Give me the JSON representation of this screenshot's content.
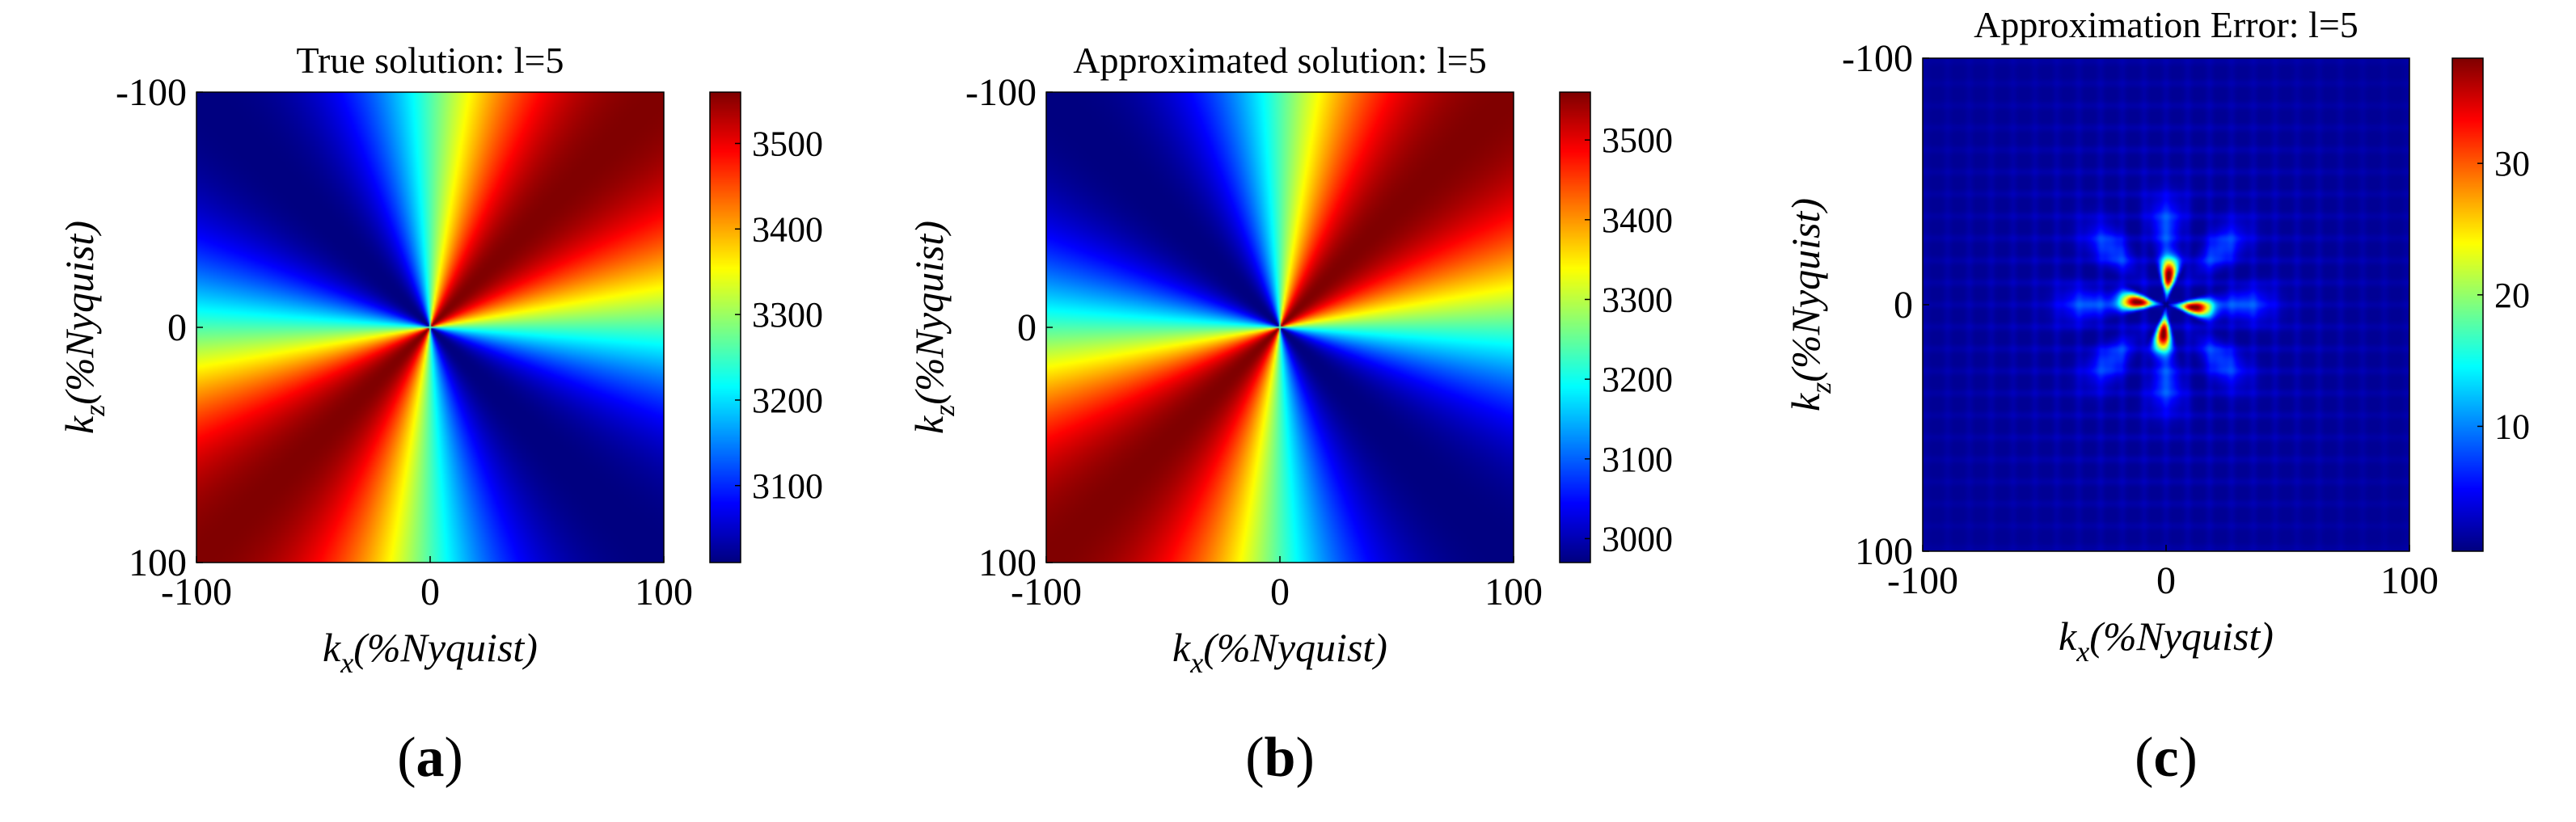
{
  "chart_data": [
    {
      "type": "heatmap",
      "panel_label": "(a)",
      "title": "True solution:  l=5",
      "xlabel": {
        "base": "k",
        "sub": "x",
        "rest": "(%Nyquist)"
      },
      "ylabel": {
        "base": "k",
        "sub": "z",
        "rest": "(%Nyquist)"
      },
      "xlim": [
        -100,
        100
      ],
      "ylim": [
        -100,
        100
      ],
      "y_reversed": true,
      "xticks": [
        "-100",
        "0",
        "100"
      ],
      "yticks": [
        "-100",
        "0",
        "100"
      ],
      "field": {
        "kind": "angular",
        "min": 3010,
        "max": 3560,
        "dip_deg": 0
      },
      "colorbar": {
        "min": 3010,
        "max": 3560,
        "ticks": [
          3100,
          3200,
          3300,
          3400,
          3500
        ],
        "colormap": "jet"
      }
    },
    {
      "type": "heatmap",
      "panel_label": "(b)",
      "title": "Approximated solution:  l=5",
      "xlabel": {
        "base": "k",
        "sub": "x",
        "rest": "(%Nyquist)"
      },
      "ylabel": {
        "base": "k",
        "sub": "z",
        "rest": "(%Nyquist)"
      },
      "xlim": [
        -100,
        100
      ],
      "ylim": [
        -100,
        100
      ],
      "y_reversed": true,
      "xticks": [
        "-100",
        "0",
        "100"
      ],
      "yticks": [
        "-100",
        "0",
        "100"
      ],
      "field": {
        "kind": "angular",
        "min": 2970,
        "max": 3560,
        "dip_deg": 0
      },
      "colorbar": {
        "min": 2970,
        "max": 3560,
        "ticks": [
          3000,
          3100,
          3200,
          3300,
          3400,
          3500
        ],
        "colormap": "jet"
      }
    },
    {
      "type": "heatmap",
      "panel_label": "(c)",
      "title": "Approximation Error:  l=5",
      "xlabel": {
        "base": "k",
        "sub": "x",
        "rest": "(%Nyquist)"
      },
      "ylabel": {
        "base": "k",
        "sub": "z",
        "rest": "(%Nyquist)"
      },
      "xlim": [
        -100,
        100
      ],
      "ylim": [
        -100,
        100
      ],
      "y_reversed": true,
      "xticks": [
        "-100",
        "0",
        "100"
      ],
      "yticks": [
        "-100",
        "0",
        "100"
      ],
      "field": {
        "kind": "petals",
        "min": 0.5,
        "max": 38,
        "lobes": 8
      },
      "colorbar": {
        "min": 0.5,
        "max": 38,
        "ticks": [
          10,
          20,
          30
        ],
        "colormap": "jet"
      }
    }
  ]
}
